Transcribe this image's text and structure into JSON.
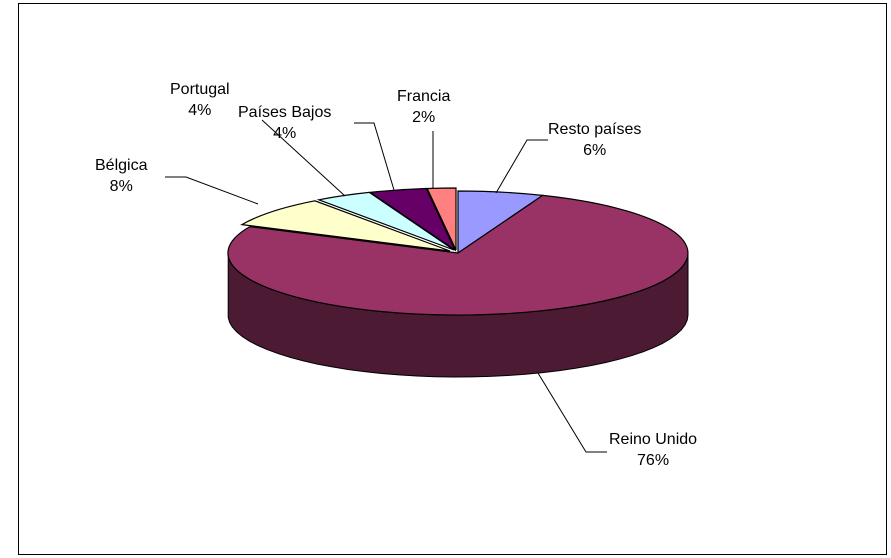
{
  "chart_data": {
    "type": "pie",
    "title": "",
    "slices": [
      {
        "label": "Resto países",
        "percent_label": "6%",
        "value": 6,
        "color": "#9999FF"
      },
      {
        "label": "Reino Unido",
        "percent_label": "76%",
        "value": 76,
        "color": "#993366"
      },
      {
        "label": "Bélgica",
        "percent_label": "8%",
        "value": 8,
        "color": "#FFFFCC"
      },
      {
        "label": "Portugal",
        "percent_label": "4%",
        "value": 4,
        "color": "#CCFFFF"
      },
      {
        "label": "Países Bajos",
        "percent_label": "4%",
        "value": 4,
        "color": "#660066"
      },
      {
        "label": "Francia",
        "percent_label": "2%",
        "value": 2,
        "color": "#FF8080"
      }
    ],
    "style": "3d-exploded",
    "legend": "none",
    "data_labels": "outside-with-leader-lines"
  }
}
